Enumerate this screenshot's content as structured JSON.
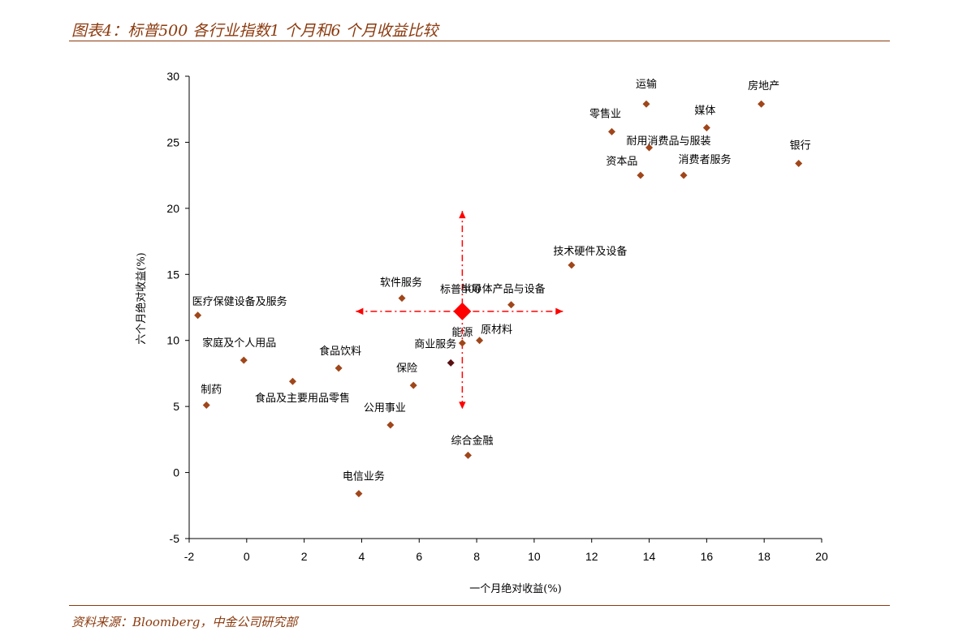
{
  "header": {
    "title": "图表4：标普500 各行业指数1 个月和6 个月收益比较"
  },
  "footer": {
    "source": "资料来源：Bloomberg，中金公司研究部"
  },
  "chart_data": {
    "type": "scatter",
    "xlabel": "一个月绝对收益(%)",
    "ylabel": "六个月绝对收益(%)",
    "xlim": [
      -2,
      20
    ],
    "ylim": [
      -5,
      30
    ],
    "xticks": [
      -2,
      0,
      2,
      4,
      6,
      8,
      10,
      12,
      14,
      16,
      18,
      20
    ],
    "yticks": [
      -5,
      0,
      5,
      10,
      15,
      20,
      25,
      30
    ],
    "grid": false,
    "colors": {
      "point": "#a0461a",
      "highlight": "#ff0000",
      "dark_point": "#5a1010",
      "accent": "#8b3a0e"
    },
    "points": [
      {
        "label": "运输",
        "x": 13.9,
        "y": 27.9
      },
      {
        "label": "房地产",
        "x": 17.9,
        "y": 27.9
      },
      {
        "label": "零售业",
        "x": 12.7,
        "y": 25.8
      },
      {
        "label": "媒体",
        "x": 16.0,
        "y": 26.1
      },
      {
        "label": "耐用消费品与服装",
        "x": 14.0,
        "y": 24.6
      },
      {
        "label": "资本品",
        "x": 13.7,
        "y": 22.5
      },
      {
        "label": "消费者服务",
        "x": 15.2,
        "y": 22.5
      },
      {
        "label": "银行",
        "x": 19.2,
        "y": 23.4
      },
      {
        "label": "技术硬件及设备",
        "x": 11.3,
        "y": 15.7
      },
      {
        "label": "软件服务",
        "x": 5.4,
        "y": 13.2
      },
      {
        "label": "半导体产品与设备",
        "x": 9.2,
        "y": 12.7
      },
      {
        "label": "医疗保健设备及服务",
        "x": -1.7,
        "y": 11.9
      },
      {
        "label": "能源",
        "x": 7.5,
        "y": 9.8
      },
      {
        "label": "原材料",
        "x": 8.1,
        "y": 10.0
      },
      {
        "label": "家庭及个人用品",
        "x": -0.1,
        "y": 8.5
      },
      {
        "label": "食品饮料",
        "x": 3.2,
        "y": 7.9
      },
      {
        "label": "商业服务",
        "x": 7.1,
        "y": 8.3
      },
      {
        "label": "保险",
        "x": 5.8,
        "y": 6.6
      },
      {
        "label": "食品及主要用品零售",
        "x": 1.6,
        "y": 6.9
      },
      {
        "label": "制药",
        "x": -1.4,
        "y": 5.1
      },
      {
        "label": "公用事业",
        "x": 5.0,
        "y": 3.6
      },
      {
        "label": "综合金融",
        "x": 7.7,
        "y": 1.3
      },
      {
        "label": "电信业务",
        "x": 3.9,
        "y": -1.6
      }
    ],
    "benchmark": {
      "label": "标普500",
      "x": 7.5,
      "y": 12.2
    },
    "arrow_extent": {
      "x_min": 3.8,
      "x_max": 11.0,
      "y_min": 4.8,
      "y_max": 19.8
    }
  }
}
